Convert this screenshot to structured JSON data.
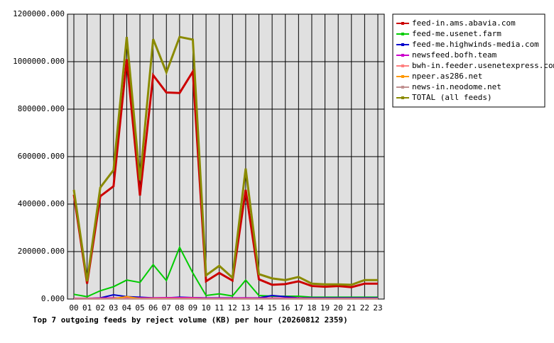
{
  "chart_data": {
    "type": "line",
    "title": "Top 7 outgoing feeds by reject volume (KB) per hour (20260812 2359)",
    "categories": [
      "00",
      "01",
      "02",
      "03",
      "04",
      "05",
      "06",
      "07",
      "08",
      "09",
      "10",
      "11",
      "12",
      "13",
      "14",
      "15",
      "16",
      "17",
      "18",
      "19",
      "20",
      "21",
      "22",
      "23"
    ],
    "ylim": [
      0,
      1200000
    ],
    "yticks": [
      {
        "value": 0,
        "label": "0.000"
      },
      {
        "value": 200000,
        "label": "200000.000"
      },
      {
        "value": 400000,
        "label": "400000.000"
      },
      {
        "value": 600000,
        "label": "600000.000"
      },
      {
        "value": 800000,
        "label": "800000.000"
      },
      {
        "value": 1000000,
        "label": "1000000.000"
      },
      {
        "value": 1200000,
        "label": "1200000.000"
      }
    ],
    "grid": true,
    "legend": "right",
    "series": [
      {
        "name": "feed-in.ams.abavia.com",
        "color": "#cc0000",
        "values": [
          440000,
          65000,
          433000,
          475000,
          1010000,
          436000,
          943000,
          870000,
          868000,
          958000,
          75000,
          110000,
          78000,
          460000,
          83000,
          60000,
          63000,
          75000,
          55000,
          52000,
          55000,
          50000,
          65000,
          65000
        ]
      },
      {
        "name": "feed-me.usenet.farm",
        "color": "#00cc00",
        "values": [
          20000,
          10000,
          35000,
          52000,
          80000,
          70000,
          145000,
          78000,
          218000,
          110000,
          15000,
          22000,
          13000,
          80000,
          15000,
          12000,
          12000,
          12000,
          8000,
          8000,
          8000,
          8000,
          8000,
          8000
        ]
      },
      {
        "name": "feed-me.highwinds-media.com",
        "color": "#0000cc",
        "values": [
          0,
          2000,
          5000,
          18000,
          10000,
          8000,
          5000,
          5000,
          8000,
          6000,
          5000,
          5000,
          5000,
          5000,
          5000,
          15000,
          10000,
          5000,
          5000,
          5000,
          5000,
          5000,
          5000,
          5000
        ]
      },
      {
        "name": "newsfeed.bofh.team",
        "color": "#cc00cc",
        "values": [
          3000,
          3000,
          4000,
          5000,
          5000,
          5000,
          5000,
          6000,
          6000,
          6000,
          4000,
          4000,
          4000,
          5000,
          4000,
          4000,
          4000,
          4000,
          3000,
          3000,
          3000,
          3000,
          3000,
          3000
        ]
      },
      {
        "name": "bwh-in.feeder.usenetexpress.com",
        "color": "#ff8080",
        "values": [
          1000,
          1000,
          1000,
          2000,
          2000,
          2000,
          2000,
          2000,
          2000,
          2000,
          1000,
          1000,
          1000,
          1000,
          1000,
          1000,
          1000,
          1000,
          1000,
          1000,
          1000,
          1000,
          1000,
          1000
        ]
      },
      {
        "name": "npeer.as286.net",
        "color": "#ff9900",
        "values": [
          1000,
          1000,
          1000,
          2000,
          10000,
          2000,
          2000,
          2000,
          2000,
          2000,
          1000,
          1000,
          1000,
          1000,
          1000,
          1000,
          1000,
          1000,
          1000,
          1000,
          1000,
          1000,
          1000,
          1000
        ]
      },
      {
        "name": "news-in.neodome.net",
        "color": "#c09090",
        "values": [
          500,
          500,
          500,
          500,
          500,
          500,
          500,
          500,
          500,
          500,
          500,
          500,
          500,
          500,
          500,
          500,
          500,
          500,
          500,
          500,
          500,
          500,
          500,
          500
        ]
      },
      {
        "name": "TOTAL (all feeds)",
        "color": "#8a8a00",
        "values": [
          460000,
          75000,
          470000,
          543000,
          1104000,
          500000,
          1095000,
          955000,
          1104000,
          1093000,
          100000,
          140000,
          90000,
          550000,
          105000,
          87000,
          80000,
          93000,
          65000,
          62000,
          62000,
          60000,
          80000,
          80000
        ]
      }
    ]
  }
}
